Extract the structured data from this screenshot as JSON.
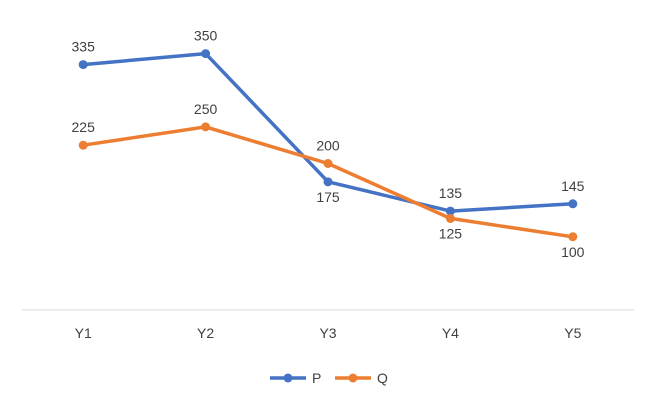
{
  "chart_data": {
    "type": "line",
    "categories": [
      "Y1",
      "Y2",
      "Y3",
      "Y4",
      "Y5"
    ],
    "series": [
      {
        "name": "P",
        "values": [
          335,
          350,
          175,
          135,
          145
        ],
        "color": "#4472C4"
      },
      {
        "name": "Q",
        "values": [
          225,
          250,
          200,
          125,
          100
        ],
        "color": "#ED7D31"
      }
    ],
    "title": "",
    "xlabel": "",
    "ylabel": "",
    "ylim": [
      0,
      400
    ],
    "grid": false,
    "legend_position": "bottom",
    "data_labels": true
  }
}
